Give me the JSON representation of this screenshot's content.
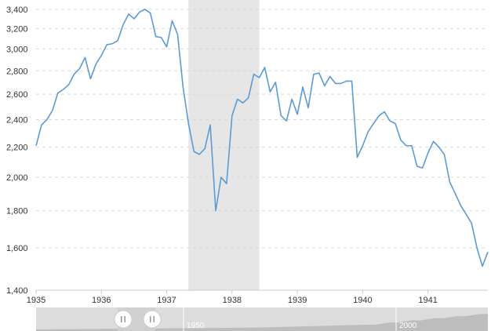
{
  "chart_data": {
    "type": "line",
    "title": "",
    "xlabel": "",
    "ylabel": "",
    "y_scale": "log",
    "ylim": [
      1400,
      3450
    ],
    "xlim": [
      "1935-01-01",
      "1941-12-01"
    ],
    "grid": "horizontal-dashed",
    "y_ticks": [
      1400,
      1600,
      1800,
      2000,
      2200,
      2400,
      2600,
      2800,
      3000,
      3200,
      3400
    ],
    "y_tick_labels": [
      "1,400",
      "1,600",
      "1,800",
      "2,000",
      "2,200",
      "2,400",
      "2,600",
      "2,800",
      "3,000",
      "3,200",
      "3,400"
    ],
    "x_tick_labels": [
      "1935",
      "1936",
      "1937",
      "1938",
      "1939",
      "1940",
      "1941"
    ],
    "recession_shading": [
      {
        "start": "1937-05-01",
        "end": "1938-06-01"
      }
    ],
    "line_color": "#5b9bd5",
    "series": [
      {
        "x": [
          "1935-01",
          "1935-02",
          "1935-03",
          "1935-04",
          "1935-05",
          "1935-06",
          "1935-07",
          "1935-08",
          "1935-09",
          "1935-10",
          "1935-11",
          "1935-12",
          "1936-01",
          "1936-02",
          "1936-03",
          "1936-04",
          "1936-05",
          "1936-06",
          "1936-07",
          "1936-08",
          "1936-09",
          "1936-10",
          "1936-11",
          "1936-12",
          "1937-01",
          "1937-02",
          "1937-03",
          "1937-04",
          "1937-05",
          "1937-06",
          "1937-07",
          "1937-08",
          "1937-09",
          "1937-10",
          "1937-11",
          "1937-12",
          "1938-01",
          "1938-02",
          "1938-03",
          "1938-04",
          "1938-05",
          "1938-06",
          "1938-07",
          "1938-08",
          "1938-09",
          "1938-10",
          "1938-11",
          "1938-12",
          "1939-01",
          "1939-02",
          "1939-03",
          "1939-04",
          "1939-05",
          "1939-06",
          "1939-07",
          "1939-08",
          "1939-09",
          "1939-10",
          "1939-11",
          "1939-12",
          "1940-01",
          "1940-02",
          "1940-03",
          "1940-04",
          "1940-05",
          "1940-06",
          "1940-07",
          "1940-08",
          "1940-09",
          "1940-10",
          "1940-11",
          "1940-12",
          "1941-01",
          "1941-02",
          "1941-03",
          "1941-04",
          "1941-05",
          "1941-06",
          "1941-07",
          "1941-08",
          "1941-09",
          "1941-10",
          "1941-11",
          "1941-12"
        ],
        "values": [
          2210,
          2360,
          2400,
          2470,
          2610,
          2640,
          2680,
          2770,
          2820,
          2920,
          2730,
          2860,
          2940,
          3040,
          3050,
          3080,
          3240,
          3350,
          3300,
          3370,
          3400,
          3360,
          3120,
          3110,
          3020,
          3280,
          3140,
          2660,
          2370,
          2170,
          2150,
          2190,
          2360,
          1800,
          2000,
          1960,
          2430,
          2560,
          2530,
          2570,
          2770,
          2740,
          2830,
          2620,
          2700,
          2430,
          2390,
          2560,
          2440,
          2660,
          2490,
          2770,
          2780,
          2670,
          2750,
          2690,
          2690,
          2710,
          2710,
          2130,
          2210,
          2310,
          2370,
          2430,
          2460,
          2390,
          2370,
          2250,
          2210,
          2210,
          2070,
          2060,
          2160,
          2240,
          2200,
          2150,
          1970,
          1900,
          1830,
          1780,
          1730,
          1600,
          1510,
          1580
        ]
      }
    ]
  },
  "navigator": {
    "labels": [
      "1950",
      "2000"
    ],
    "handle_icon": "pause-bars-icon"
  }
}
